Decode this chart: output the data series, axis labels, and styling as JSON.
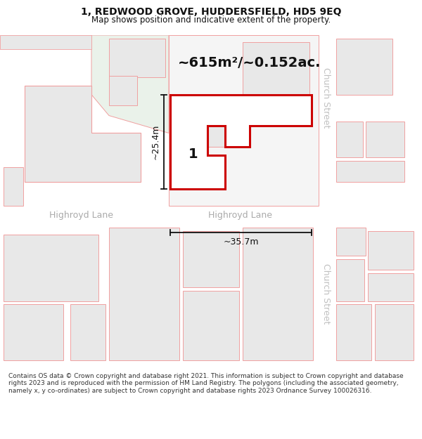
{
  "title": "1, REDWOOD GROVE, HUDDERSFIELD, HD5 9EQ",
  "subtitle": "Map shows position and indicative extent of the property.",
  "footer": "Contains OS data © Crown copyright and database right 2021. This information is subject to Crown copyright and database rights 2023 and is reproduced with the permission of HM Land Registry. The polygons (including the associated geometry, namely x, y co-ordinates) are subject to Crown copyright and database rights 2023 Ordnance Survey 100026316.",
  "area_label": "~615m²/~0.152ac.",
  "width_label": "~35.7m",
  "height_label": "~25.4m",
  "road_label_left": "Highroyd Lane",
  "road_label_center": "Highroyd Lane",
  "street_label_top": "Church Street",
  "street_label_bottom": "Church Street",
  "property_number": "1",
  "bg_color": "#ffffff",
  "building_fill": "#e8e8e8",
  "building_outline": "#f0a0a0",
  "green_fill": "#eaf2ea",
  "green_outline": "#f0a0a0",
  "property_outline": "#cc0000",
  "property_fill": "#ffffff",
  "dim_color": "#111111",
  "text_color": "#111111",
  "road_text_color": "#aaaaaa",
  "street_text_color": "#c0c0c0",
  "title_fontsize": 10,
  "subtitle_fontsize": 8.5,
  "footer_fontsize": 6.5,
  "area_fontsize": 14,
  "label_fontsize": 9,
  "road_fontsize": 9,
  "street_fontsize": 9,
  "number_fontsize": 14
}
